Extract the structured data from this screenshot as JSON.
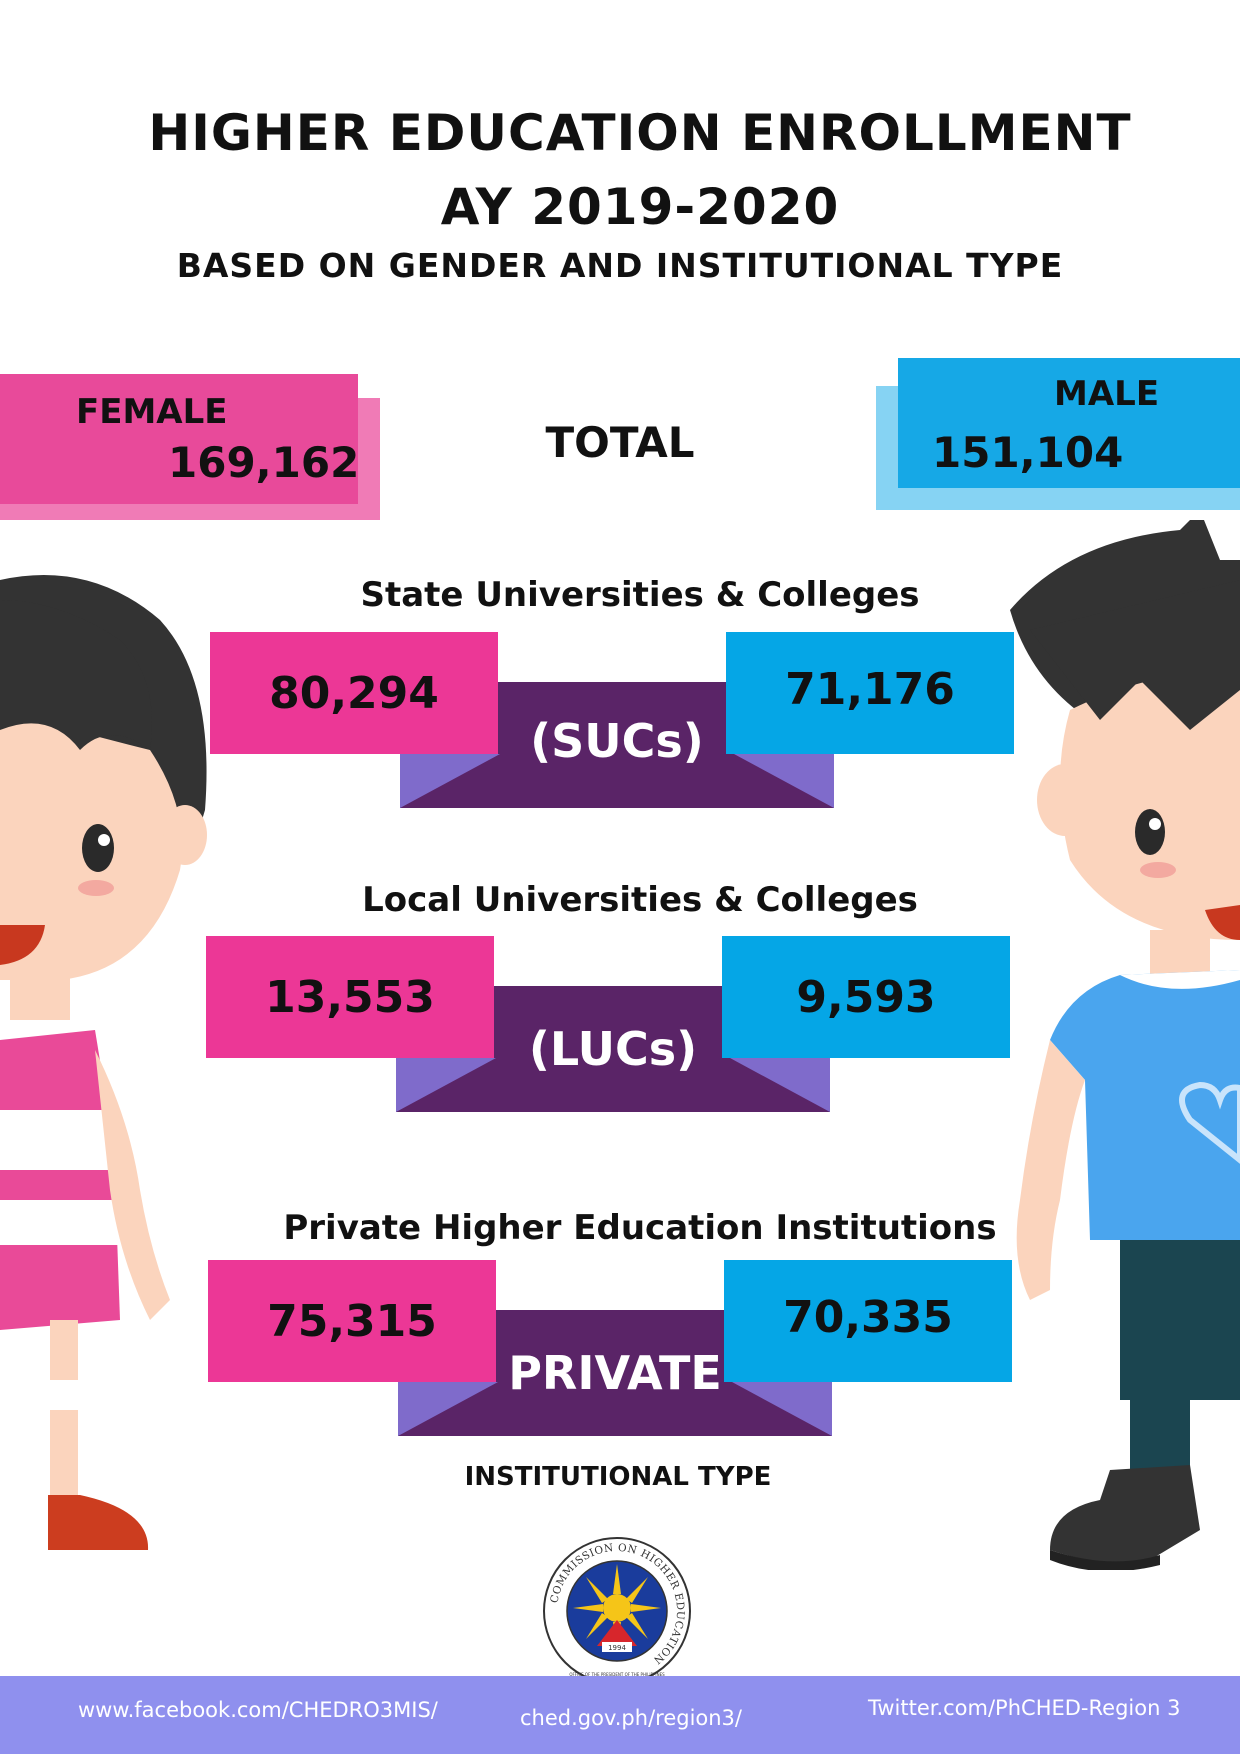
{
  "header": {
    "title_line1": "HIGHER EDUCATION ENROLLMENT",
    "title_line2": "AY 2019-2020",
    "subtitle": "BASED ON GENDER AND INSTITUTIONAL TYPE"
  },
  "totals": {
    "female_label": "FEMALE",
    "female_value": "169,162",
    "total_label": "TOTAL",
    "male_label": "MALE",
    "male_value": "151,104"
  },
  "sections": [
    {
      "heading": "State Universities & Colleges",
      "female": "80,294",
      "male": "71,176",
      "tag": "(SUCs)"
    },
    {
      "heading": "Local Universities & Colleges",
      "female": "13,553",
      "male": "9,593",
      "tag": "(LUCs)"
    },
    {
      "heading": "Private Higher Education Institutions",
      "female": "75,315",
      "male": "70,335",
      "tag": "PRIVATE"
    }
  ],
  "caption": "INSTITUTIONAL TYPE",
  "seal": {
    "ring_text": "COMMISSION ON HIGHER EDUCATION",
    "year": "1994",
    "bottom_text": "OFFICE OF THE PRESIDENT OF THE PHILIPPINES"
  },
  "footer": {
    "facebook": "www.facebook.com/CHEDRO3MIS/",
    "website": "ched.gov.ph/region3/",
    "twitter": "Twitter.com/PhCHED-Region 3"
  },
  "colors": {
    "female": "#ec3796",
    "male": "#05a6e6",
    "ribbon": "#5a2467",
    "ribbon_fold": "#7f6bcb",
    "footer": "#8f90ee"
  }
}
